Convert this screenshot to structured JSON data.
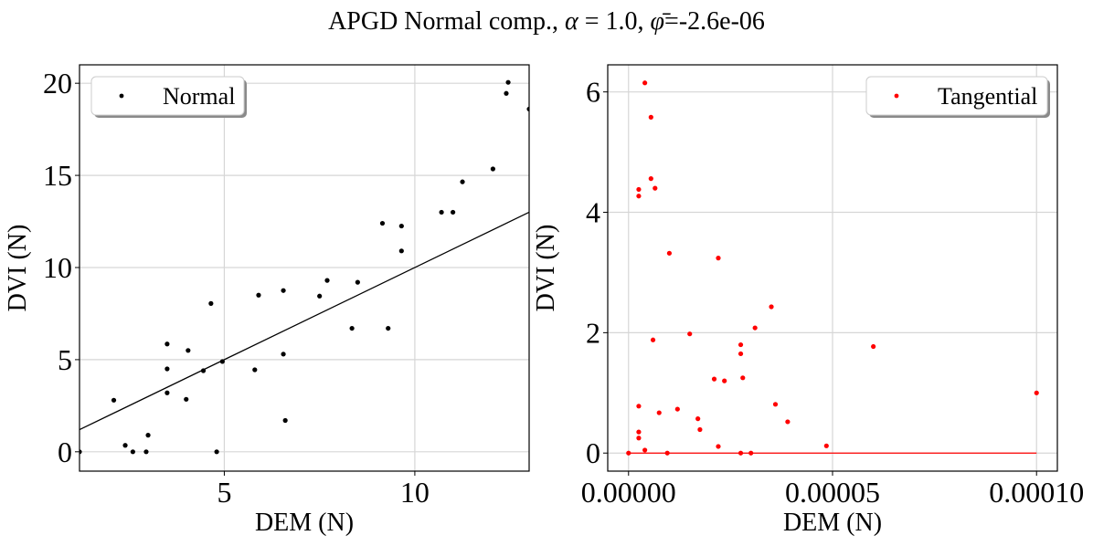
{
  "figure": {
    "title_prefix": "APGD Normal comp., ",
    "title_alpha_symbol": "α",
    "title_alpha_value": " = 1.0, ",
    "title_phi_symbol": "φ̄",
    "title_phi_value": "=-2.6e-06"
  },
  "chart_data": [
    {
      "type": "scatter",
      "xlabel": "DEM (N)",
      "ylabel": "DVI (N)",
      "xlim": [
        1.2,
        13.0
      ],
      "ylim": [
        -1.05,
        21.0
      ],
      "xticks": [
        5,
        10
      ],
      "yticks": [
        0,
        5,
        10,
        15,
        20
      ],
      "grid": true,
      "legend_position": "top-left",
      "series": [
        {
          "name": "Normal",
          "color": "#000000",
          "points": [
            [
              1.2,
              0.0
            ],
            [
              2.1,
              2.8
            ],
            [
              2.4,
              0.35
            ],
            [
              2.6,
              0.0
            ],
            [
              2.95,
              0.0
            ],
            [
              3.0,
              0.9
            ],
            [
              3.5,
              3.2
            ],
            [
              3.5,
              4.5
            ],
            [
              3.5,
              5.85
            ],
            [
              4.0,
              2.85
            ],
            [
              4.05,
              5.5
            ],
            [
              4.45,
              4.4
            ],
            [
              4.65,
              8.05
            ],
            [
              4.8,
              0.0
            ],
            [
              4.95,
              4.9
            ],
            [
              5.8,
              4.45
            ],
            [
              5.9,
              8.5
            ],
            [
              6.55,
              5.3
            ],
            [
              6.55,
              8.75
            ],
            [
              6.6,
              1.7
            ],
            [
              7.5,
              8.45
            ],
            [
              7.7,
              9.3
            ],
            [
              8.35,
              6.7
            ],
            [
              8.5,
              9.2
            ],
            [
              9.15,
              12.4
            ],
            [
              9.3,
              6.7
            ],
            [
              9.65,
              10.9
            ],
            [
              9.65,
              12.25
            ],
            [
              10.7,
              13.0
            ],
            [
              11.0,
              13.0
            ],
            [
              11.25,
              14.65
            ],
            [
              12.05,
              15.35
            ],
            [
              12.4,
              19.45
            ],
            [
              12.45,
              20.05
            ],
            [
              13.0,
              18.6
            ]
          ]
        },
        {
          "name": "",
          "type": "line",
          "color": "#000000",
          "x": [
            1.2,
            13.0
          ],
          "y": [
            1.2,
            13.0
          ]
        }
      ]
    },
    {
      "type": "scatter",
      "xlabel": "DEM (N)",
      "ylabel": "DVI (N)",
      "xlim": [
        -5.1e-06,
        0.0001051
      ],
      "ylim": [
        -0.3,
        6.45
      ],
      "xticks": [
        0.0,
        5e-05,
        0.0001
      ],
      "xticklabels": [
        "0.00000",
        "0.00005",
        "0.00010"
      ],
      "yticks": [
        0,
        2,
        4,
        6
      ],
      "grid": true,
      "legend_position": "top-right",
      "series": [
        {
          "name": "Tangential",
          "color": "#ff0000",
          "points": [
            [
              0.0,
              0.0
            ],
            [
              2.5e-06,
              0.25
            ],
            [
              2.5e-06,
              0.35
            ],
            [
              2.5e-06,
              0.78
            ],
            [
              2.5e-06,
              4.27
            ],
            [
              2.5e-06,
              4.38
            ],
            [
              4e-06,
              6.15
            ],
            [
              4e-06,
              0.05
            ],
            [
              5.5e-06,
              5.58
            ],
            [
              5.5e-06,
              4.56
            ],
            [
              6e-06,
              1.88
            ],
            [
              6.5e-06,
              4.4
            ],
            [
              7.5e-06,
              0.67
            ],
            [
              9.5e-06,
              0.0
            ],
            [
              1e-05,
              3.32
            ],
            [
              1.2e-05,
              0.73
            ],
            [
              1.5e-05,
              1.98
            ],
            [
              1.7e-05,
              0.57
            ],
            [
              1.75e-05,
              0.39
            ],
            [
              2.1e-05,
              1.23
            ],
            [
              2.2e-05,
              3.24
            ],
            [
              2.2e-05,
              0.11
            ],
            [
              2.35e-05,
              1.2
            ],
            [
              2.75e-05,
              0.0
            ],
            [
              2.75e-05,
              1.8
            ],
            [
              2.75e-05,
              1.65
            ],
            [
              2.8e-05,
              1.25
            ],
            [
              3e-05,
              0.0
            ],
            [
              3.1e-05,
              2.08
            ],
            [
              3.5e-05,
              2.43
            ],
            [
              3.6e-05,
              0.81
            ],
            [
              3.9e-05,
              0.52
            ],
            [
              4.85e-05,
              0.12
            ],
            [
              6e-05,
              1.77
            ],
            [
              0.0001,
              1.0
            ]
          ]
        },
        {
          "name": "",
          "type": "line",
          "color": "#ff0000",
          "x": [
            0.0,
            0.0001
          ],
          "y": [
            0.0,
            0.0
          ]
        }
      ]
    }
  ]
}
